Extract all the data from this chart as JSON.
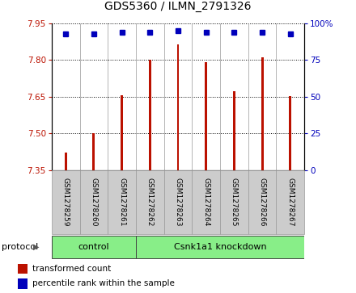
{
  "title": "GDS5360 / ILMN_2791326",
  "samples": [
    "GSM1278259",
    "GSM1278260",
    "GSM1278261",
    "GSM1278262",
    "GSM1278263",
    "GSM1278264",
    "GSM1278265",
    "GSM1278266",
    "GSM1278267"
  ],
  "red_values": [
    7.42,
    7.5,
    7.655,
    7.802,
    7.865,
    7.792,
    7.672,
    7.812,
    7.652
  ],
  "blue_values": [
    93,
    93,
    94,
    94,
    95,
    94,
    94,
    94,
    93
  ],
  "ylim_left": [
    7.35,
    7.95
  ],
  "ylim_right": [
    0,
    100
  ],
  "yticks_left": [
    7.35,
    7.5,
    7.65,
    7.8,
    7.95
  ],
  "yticks_right": [
    0,
    25,
    50,
    75,
    100
  ],
  "ytick_labels_right": [
    "0",
    "25",
    "50",
    "75",
    "100%"
  ],
  "bar_color": "#BB1100",
  "dot_color": "#0000BB",
  "bar_width": 0.08,
  "grid_color": "#000000",
  "bg_color": "#CCCCCC",
  "green_color": "#88EE88",
  "legend_red_label": "transformed count",
  "legend_blue_label": "percentile rank within the sample",
  "protocol_label": "protocol",
  "ctrl_count": 3,
  "total_count": 9
}
